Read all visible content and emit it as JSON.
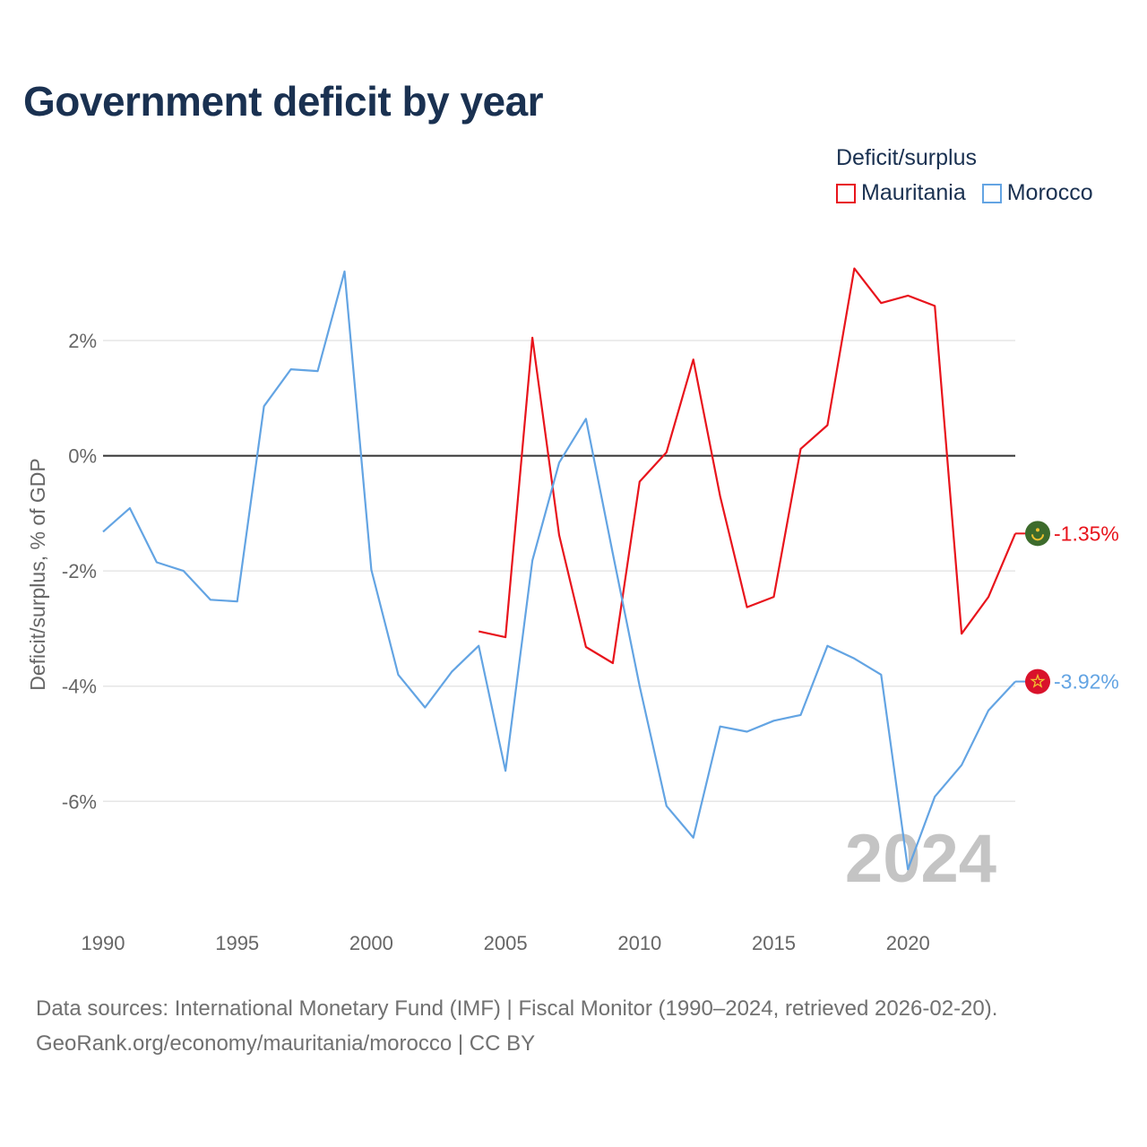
{
  "title": "Government deficit by year",
  "legend": {
    "title": "Deficit/surplus",
    "items": [
      {
        "name": "Mauritania",
        "color": "#e8141c"
      },
      {
        "name": "Morocco",
        "color": "#63a4e3"
      }
    ]
  },
  "source": {
    "line1": "Data sources: International Monetary Fund (IMF) | Fiscal Monitor (1990–2024, retrieved 2026-02-20).",
    "line2": "GeoRank.org/economy/mauritania/morocco | CC BY"
  },
  "chart_data": {
    "type": "line",
    "title": "Government deficit by year",
    "xlabel": "",
    "ylabel": "Deficit/surplus, % of GDP",
    "xlim": [
      1990,
      2024
    ],
    "ylim": [
      -7.8,
      3.4
    ],
    "x_ticks": [
      1990,
      1995,
      2000,
      2005,
      2010,
      2015,
      2020
    ],
    "y_ticks": [
      2,
      0,
      -2,
      -4,
      -6
    ],
    "y_tick_labels": [
      "2%",
      "0%",
      "-2%",
      "-4%",
      "-6%"
    ],
    "zero_line": true,
    "grid": true,
    "current_year_label": "2024",
    "series": [
      {
        "name": "Mauritania",
        "color": "#e8141c",
        "flag_icon": "mauritania-flag-icon",
        "end_label": "-1.35%",
        "x": [
          2004,
          2005,
          2006,
          2007,
          2008,
          2009,
          2010,
          2011,
          2012,
          2013,
          2014,
          2015,
          2016,
          2017,
          2018,
          2019,
          2020,
          2021,
          2022,
          2023,
          2024
        ],
        "values": [
          -3.05,
          -3.15,
          2.05,
          -1.38,
          -3.32,
          -3.6,
          -0.45,
          0.06,
          1.67,
          -0.7,
          -2.63,
          -2.45,
          0.12,
          0.53,
          3.25,
          2.65,
          2.78,
          2.6,
          -3.09,
          -2.45,
          -1.35
        ]
      },
      {
        "name": "Morocco",
        "color": "#63a4e3",
        "flag_icon": "morocco-flag-icon",
        "end_label": "-3.92%",
        "x": [
          1990,
          1991,
          1992,
          1993,
          1994,
          1995,
          1996,
          1997,
          1998,
          1999,
          2000,
          2001,
          2002,
          2003,
          2004,
          2005,
          2006,
          2007,
          2008,
          2009,
          2010,
          2011,
          2012,
          2013,
          2014,
          2015,
          2016,
          2017,
          2018,
          2019,
          2020,
          2021,
          2022,
          2023,
          2024
        ],
        "values": [
          -1.32,
          -0.91,
          -1.85,
          -2.0,
          -2.5,
          -2.53,
          0.86,
          1.5,
          1.47,
          3.2,
          -1.98,
          -3.8,
          -4.37,
          -3.75,
          -3.3,
          -5.47,
          -1.82,
          -0.12,
          0.64,
          -1.7,
          -4.0,
          -6.08,
          -6.63,
          -4.7,
          -4.79,
          -4.6,
          -4.5,
          -3.3,
          -3.52,
          -3.8,
          -7.18,
          -5.92,
          -5.37,
          -4.42,
          -3.92
        ]
      }
    ]
  }
}
